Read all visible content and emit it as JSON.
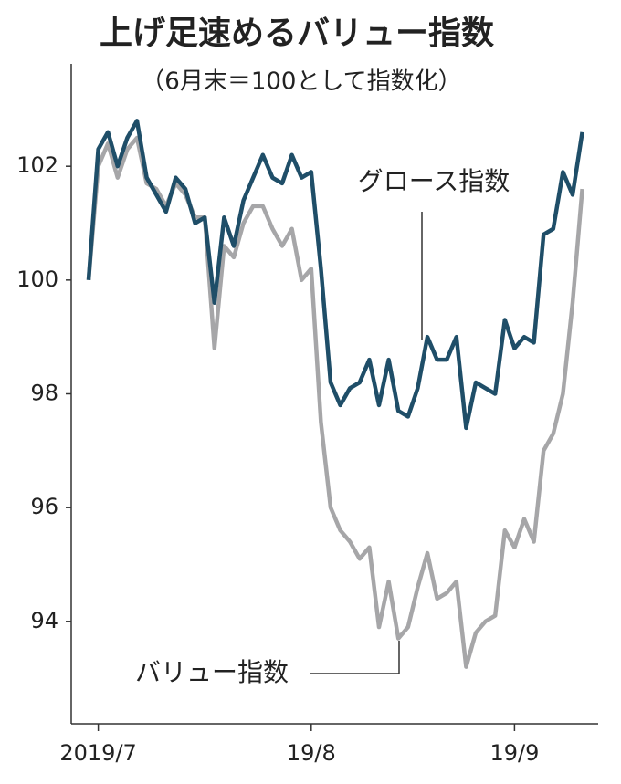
{
  "chart_data": {
    "type": "line",
    "title": "上げ足速めるバリュー指数",
    "subtitle": "（6月末＝100として指数化）",
    "categories": [
      null,
      "2019/7",
      null,
      null,
      null,
      null,
      null,
      null,
      null,
      null,
      null,
      null,
      null,
      null,
      null,
      null,
      null,
      null,
      null,
      null,
      null,
      null,
      null,
      "19/8",
      null,
      null,
      null,
      null,
      null,
      null,
      null,
      null,
      null,
      null,
      null,
      null,
      null,
      null,
      null,
      null,
      null,
      null,
      null,
      null,
      "19/9",
      null,
      null,
      null,
      null,
      null,
      null,
      null
    ],
    "series": [
      {
        "name": "グロース指数",
        "color": "#1f4e68",
        "values": [
          100.0,
          102.3,
          102.6,
          102.0,
          102.5,
          102.8,
          101.8,
          101.5,
          101.2,
          101.8,
          101.6,
          101.0,
          101.1,
          99.6,
          101.1,
          100.6,
          101.4,
          101.8,
          102.2,
          101.8,
          101.7,
          102.2,
          101.8,
          101.9,
          100.2,
          98.2,
          97.8,
          98.1,
          98.2,
          98.6,
          97.8,
          98.6,
          97.7,
          97.6,
          98.1,
          99.0,
          98.6,
          98.6,
          99.0,
          97.4,
          98.2,
          98.1,
          98.0,
          99.3,
          98.8,
          99.0,
          98.9,
          100.8,
          100.9,
          101.9,
          101.5,
          102.6
        ]
      },
      {
        "name": "バリュー指数",
        "color": "#a6a6a8",
        "values": [
          100.0,
          102.0,
          102.4,
          101.8,
          102.3,
          102.5,
          101.7,
          101.6,
          101.3,
          101.7,
          101.5,
          101.1,
          101.1,
          98.8,
          100.6,
          100.4,
          101.0,
          101.3,
          101.3,
          100.9,
          100.6,
          100.9,
          100.0,
          100.2,
          97.5,
          96.0,
          95.6,
          95.4,
          95.1,
          95.3,
          93.9,
          94.7,
          93.7,
          93.9,
          94.6,
          95.2,
          94.4,
          94.5,
          94.7,
          93.2,
          93.8,
          94.0,
          94.1,
          95.6,
          95.3,
          95.8,
          95.4,
          97.0,
          97.3,
          98.0,
          99.6,
          101.6
        ]
      }
    ],
    "ylim": [
      92.2,
      103.8
    ],
    "yticks": [
      94,
      96,
      98,
      100,
      102
    ],
    "grid": false
  }
}
